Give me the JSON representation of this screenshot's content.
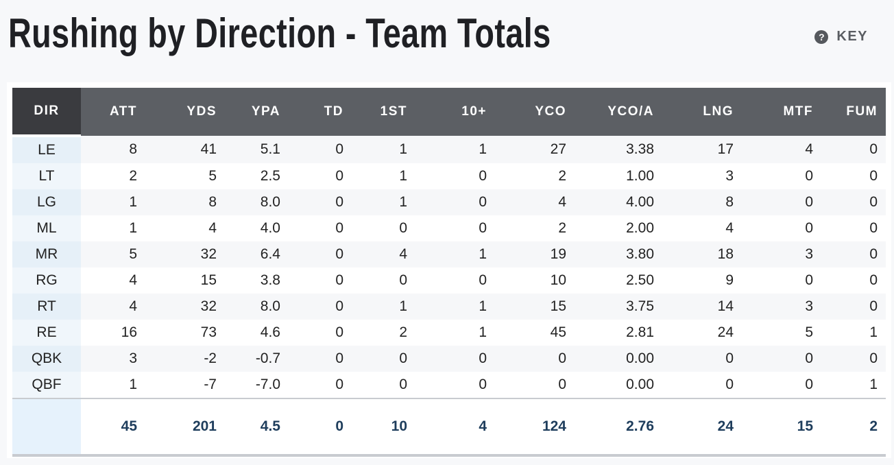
{
  "title": "Rushing by Direction - Team Totals",
  "key_label": "KEY",
  "columns": [
    "DIR",
    "ATT",
    "YDS",
    "YPA",
    "TD",
    "1ST",
    "10+",
    "YCO",
    "YCO/A",
    "LNG",
    "MTF",
    "FUM"
  ],
  "rows": [
    [
      "LE",
      "8",
      "41",
      "5.1",
      "0",
      "1",
      "1",
      "27",
      "3.38",
      "17",
      "4",
      "0"
    ],
    [
      "LT",
      "2",
      "5",
      "2.5",
      "0",
      "1",
      "0",
      "2",
      "1.00",
      "3",
      "0",
      "0"
    ],
    [
      "LG",
      "1",
      "8",
      "8.0",
      "0",
      "1",
      "0",
      "4",
      "4.00",
      "8",
      "0",
      "0"
    ],
    [
      "ML",
      "1",
      "4",
      "4.0",
      "0",
      "0",
      "0",
      "2",
      "2.00",
      "4",
      "0",
      "0"
    ],
    [
      "MR",
      "5",
      "32",
      "6.4",
      "0",
      "4",
      "1",
      "19",
      "3.80",
      "18",
      "3",
      "0"
    ],
    [
      "RG",
      "4",
      "15",
      "3.8",
      "0",
      "0",
      "0",
      "10",
      "2.50",
      "9",
      "0",
      "0"
    ],
    [
      "RT",
      "4",
      "32",
      "8.0",
      "0",
      "1",
      "1",
      "15",
      "3.75",
      "14",
      "3",
      "0"
    ],
    [
      "RE",
      "16",
      "73",
      "4.6",
      "0",
      "2",
      "1",
      "45",
      "2.81",
      "24",
      "5",
      "1"
    ],
    [
      "QBK",
      "3",
      "-2",
      "-0.7",
      "0",
      "0",
      "0",
      "0",
      "0.00",
      "0",
      "0",
      "0"
    ],
    [
      "QBF",
      "1",
      "-7",
      "-7.0",
      "0",
      "0",
      "0",
      "0",
      "0.00",
      "0",
      "0",
      "1"
    ]
  ],
  "totals": [
    "",
    "45",
    "201",
    "4.5",
    "0",
    "10",
    "4",
    "124",
    "2.76",
    "24",
    "15",
    "2"
  ]
}
